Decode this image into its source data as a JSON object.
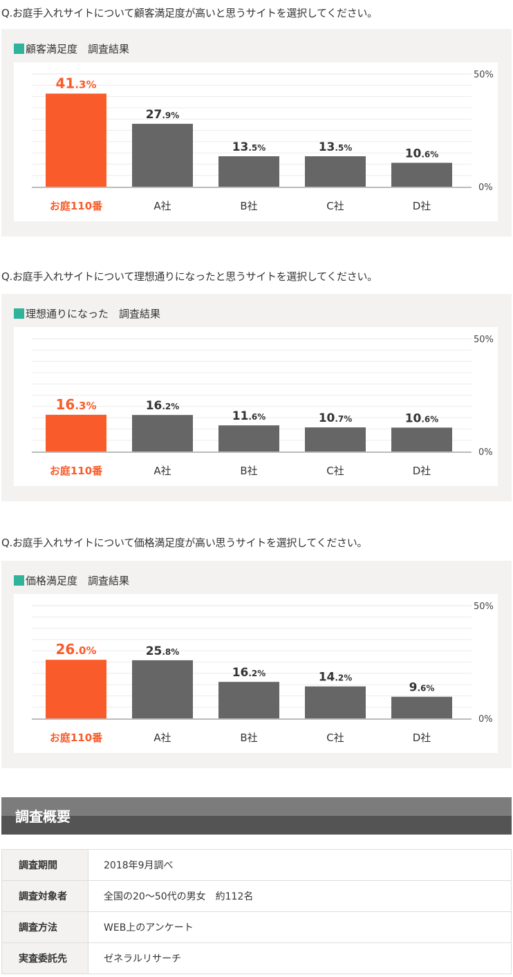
{
  "chart_data": [
    {
      "type": "bar",
      "question": "Q.お庭手入れサイトについて顧客満足度が高いと思うサイトを選択してください。",
      "title": "顧客満足度　調査結果",
      "categories": [
        "お庭110番",
        "A社",
        "B社",
        "C社",
        "D社"
      ],
      "values": [
        41.3,
        27.9,
        13.5,
        13.5,
        10.6
      ],
      "unit": "%",
      "ylim": [
        0,
        50
      ],
      "yticks": [
        "50%",
        "0%"
      ],
      "grid": true
    },
    {
      "type": "bar",
      "question": "Q.お庭手入れサイトについて理想通りになったと思うサイトを選択してください。",
      "title": "理想通りになった　調査結果",
      "categories": [
        "お庭110番",
        "A社",
        "B社",
        "C社",
        "D社"
      ],
      "values": [
        16.3,
        16.2,
        11.6,
        10.7,
        10.6
      ],
      "unit": "%",
      "ylim": [
        0,
        50
      ],
      "yticks": [
        "50%",
        "0%"
      ],
      "grid": true
    },
    {
      "type": "bar",
      "question": "Q.お庭手入れサイトについて価格満足度が高い思うサイトを選択してください。",
      "title": "価格満足度　調査結果",
      "categories": [
        "お庭110番",
        "A社",
        "B社",
        "C社",
        "D社"
      ],
      "values": [
        26.0,
        25.8,
        16.2,
        14.2,
        9.6
      ],
      "unit": "%",
      "ylim": [
        0,
        50
      ],
      "yticks": [
        "50%",
        "0%"
      ],
      "grid": true
    }
  ],
  "colors": {
    "highlight": "#f95c2a",
    "bar": "#666666",
    "accent": "#2fb39b"
  },
  "summary": {
    "title": "調査概要",
    "rows": [
      {
        "label": "調査期間",
        "value": "2018年9月調べ"
      },
      {
        "label": "調査対象者",
        "value": "全国の20～50代の男女　約112名"
      },
      {
        "label": "調査方法",
        "value": "WEB上のアンケート"
      },
      {
        "label": "実査委託先",
        "value": "ゼネラルリサーチ"
      }
    ]
  }
}
